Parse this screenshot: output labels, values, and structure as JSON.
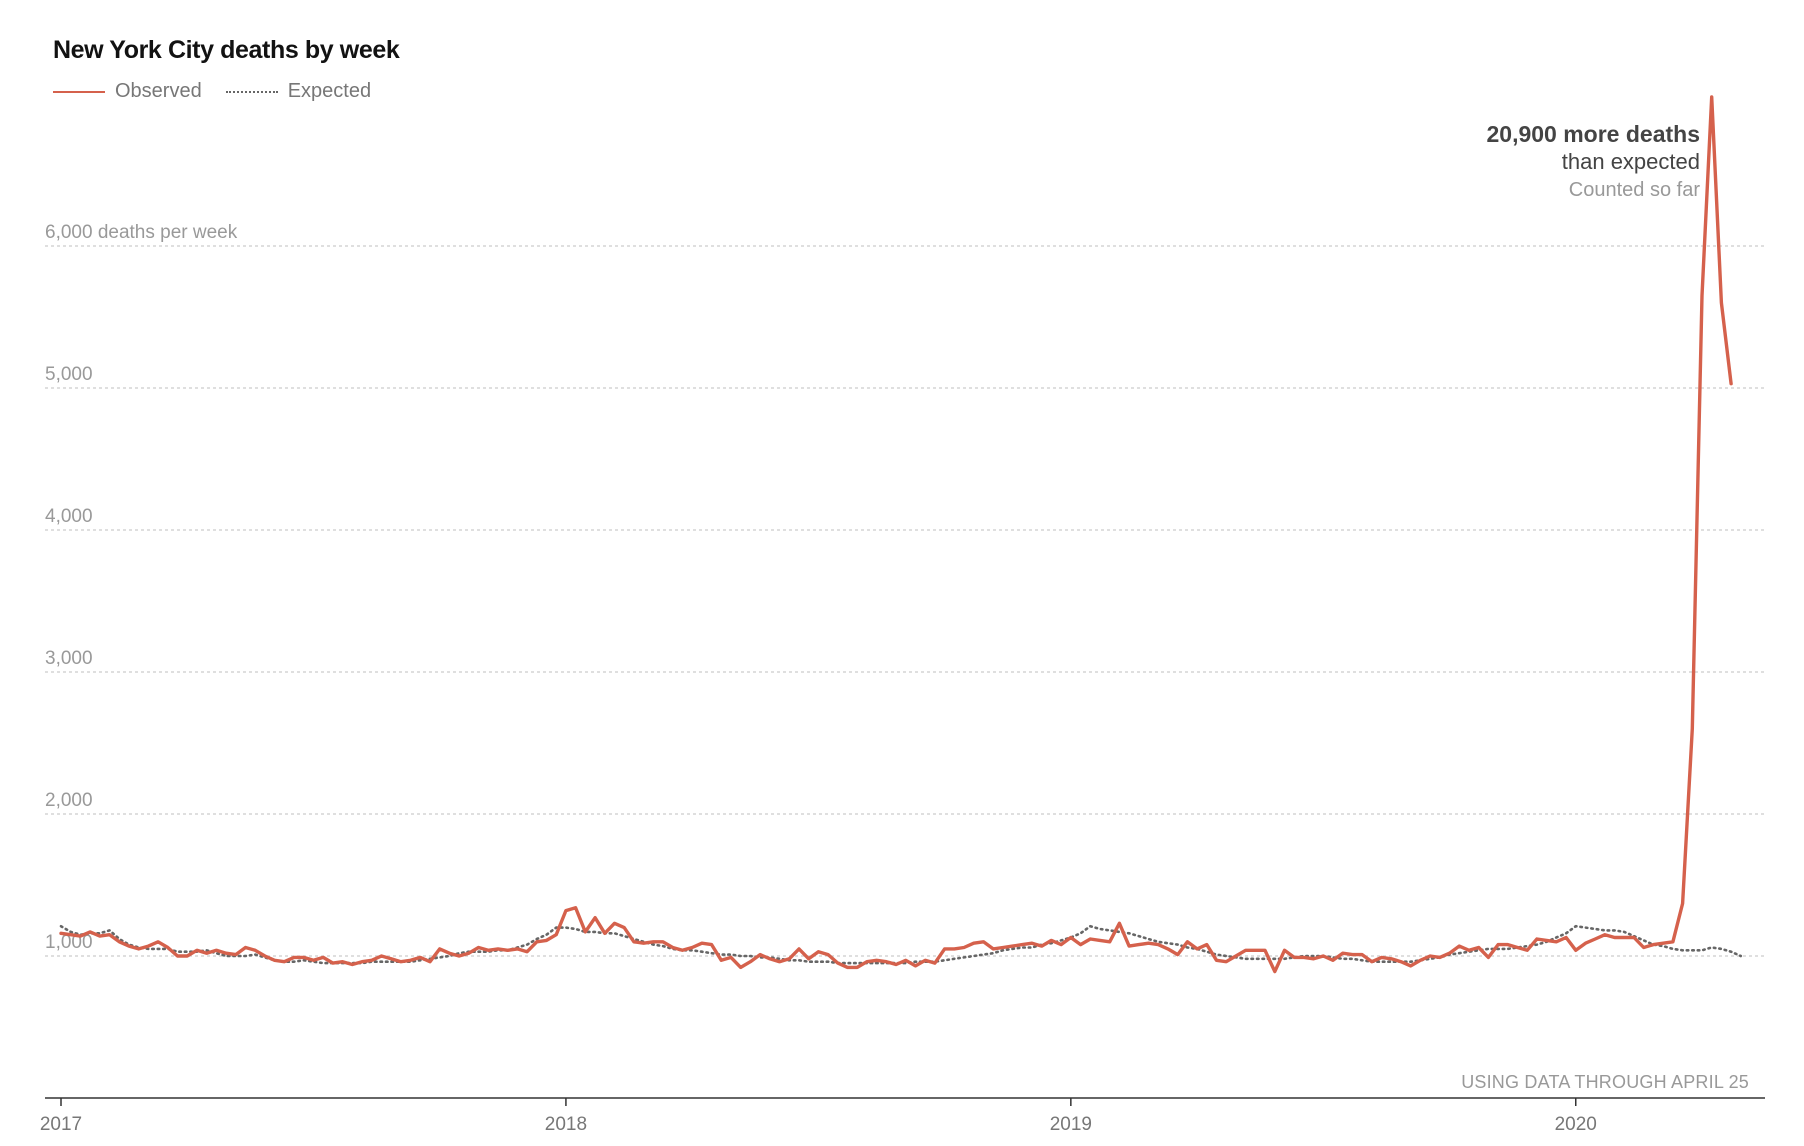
{
  "chart_data": {
    "type": "line",
    "title": "New York City deaths by week",
    "ylabel": "6,000 deaths per week",
    "ylim": [
      0,
      7000
    ],
    "y_ticks": [
      1000,
      2000,
      3000,
      4000,
      5000,
      6000
    ],
    "y_tick_labels": [
      "1,000",
      "2,000",
      "3,000",
      "4,000",
      "5,000",
      "6,000 deaths per week"
    ],
    "x_tick_labels": [
      "2017",
      "2018",
      "2019",
      "2020"
    ],
    "grid": true,
    "legend": "top-left",
    "weeks_label": "week",
    "series": [
      {
        "name": "Observed",
        "color": "#d5614c",
        "style": "solid",
        "values": [
          1160,
          1150,
          1140,
          1170,
          1140,
          1150,
          1100,
          1070,
          1050,
          1070,
          1100,
          1060,
          1000,
          1000,
          1040,
          1020,
          1040,
          1020,
          1010,
          1060,
          1040,
          1000,
          970,
          960,
          990,
          990,
          970,
          990,
          950,
          960,
          940,
          960,
          970,
          1000,
          980,
          960,
          970,
          990,
          960,
          1050,
          1020,
          1000,
          1020,
          1060,
          1040,
          1050,
          1040,
          1050,
          1030,
          1100,
          1110,
          1150,
          1320,
          1340,
          1170,
          1270,
          1160,
          1230,
          1200,
          1100,
          1090,
          1100,
          1100,
          1060,
          1040,
          1060,
          1090,
          1080,
          970,
          990,
          920,
          960,
          1010,
          980,
          960,
          980,
          1050,
          980,
          1030,
          1010,
          950,
          920,
          920,
          960,
          970,
          960,
          940,
          970,
          930,
          970,
          950,
          1050,
          1050,
          1060,
          1090,
          1100,
          1050,
          1060,
          1070,
          1080,
          1090,
          1070,
          1110,
          1080,
          1130,
          1080,
          1120,
          1110,
          1100,
          1230,
          1070,
          1080,
          1090,
          1080,
          1050,
          1010,
          1100,
          1050,
          1080,
          970,
          960,
          1000,
          1040,
          1040,
          1040,
          890,
          1040,
          990,
          990,
          980,
          1000,
          970,
          1020,
          1010,
          1010,
          960,
          990,
          980,
          960,
          930,
          970,
          1000,
          990,
          1020,
          1070,
          1040,
          1060,
          990,
          1080,
          1080,
          1060,
          1040,
          1120,
          1110,
          1100,
          1130,
          1040,
          1090,
          1120,
          1150,
          1130,
          1130,
          1130,
          1060,
          1080,
          1090,
          1100,
          1370,
          2600,
          5650,
          7050,
          5600,
          5030
        ]
      },
      {
        "name": "Expected",
        "color": "#666666",
        "style": "dotted",
        "values": [
          1210,
          1170,
          1150,
          1160,
          1160,
          1180,
          1120,
          1080,
          1060,
          1050,
          1050,
          1050,
          1030,
          1030,
          1030,
          1040,
          1020,
          1000,
          1000,
          1000,
          1010,
          990,
          970,
          960,
          960,
          970,
          960,
          950,
          950,
          950,
          950,
          950,
          960,
          960,
          960,
          960,
          960,
          970,
          980,
          990,
          1000,
          1020,
          1030,
          1030,
          1030,
          1040,
          1040,
          1060,
          1080,
          1120,
          1150,
          1200,
          1200,
          1190,
          1170,
          1170,
          1160,
          1160,
          1140,
          1120,
          1100,
          1080,
          1070,
          1050,
          1040,
          1040,
          1030,
          1020,
          1010,
          1010,
          1000,
          1000,
          990,
          990,
          980,
          970,
          970,
          960,
          960,
          960,
          950,
          950,
          950,
          950,
          950,
          950,
          950,
          950,
          960,
          960,
          960,
          970,
          980,
          990,
          1000,
          1010,
          1020,
          1040,
          1050,
          1060,
          1060,
          1080,
          1090,
          1110,
          1130,
          1160,
          1210,
          1190,
          1180,
          1170,
          1160,
          1140,
          1120,
          1100,
          1090,
          1080,
          1060,
          1050,
          1030,
          1010,
          1000,
          990,
          980,
          980,
          980,
          980,
          980,
          990,
          1000,
          1000,
          1000,
          990,
          980,
          980,
          970,
          960,
          960,
          960,
          960,
          960,
          970,
          980,
          990,
          1010,
          1020,
          1030,
          1040,
          1050,
          1050,
          1050,
          1060,
          1070,
          1080,
          1100,
          1130,
          1160,
          1210,
          1200,
          1190,
          1180,
          1180,
          1170,
          1140,
          1110,
          1080,
          1070,
          1050,
          1040,
          1040,
          1040,
          1060,
          1050,
          1030,
          1000
        ]
      }
    ],
    "annotation": {
      "main": "20,900 more deaths",
      "sub": "than expected",
      "note": "Counted so far"
    },
    "source_note": "USING DATA THROUGH APRIL 25"
  }
}
